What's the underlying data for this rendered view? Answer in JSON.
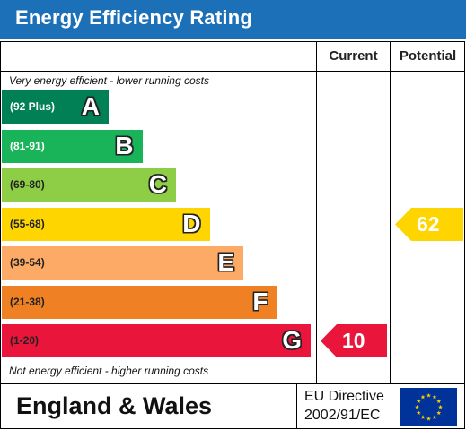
{
  "header": {
    "title": "Energy Efficiency Rating"
  },
  "columns": {
    "current": "Current",
    "potential": "Potential"
  },
  "notes": {
    "top": "Very energy efficient - lower running costs",
    "bottom": "Not energy efficient - higher running costs"
  },
  "colors": {
    "header": "#1c70b8",
    "A": "#008054",
    "B": "#19b459",
    "C": "#8dce46",
    "D": "#ffd500",
    "E": "#fcaa65",
    "F": "#ef8023",
    "G": "#e9153b",
    "flag": "#003399",
    "stars": "#ffcc00"
  },
  "chart_data": {
    "type": "bar",
    "title": "Energy Efficiency Rating",
    "bands": [
      {
        "letter": "A",
        "range": "(92 Plus)",
        "min": 92,
        "max": null
      },
      {
        "letter": "B",
        "range": "(81-91)",
        "min": 81,
        "max": 91
      },
      {
        "letter": "C",
        "range": "(69-80)",
        "min": 69,
        "max": 80
      },
      {
        "letter": "D",
        "range": "(55-68)",
        "min": 55,
        "max": 68
      },
      {
        "letter": "E",
        "range": "(39-54)",
        "min": 39,
        "max": 54
      },
      {
        "letter": "F",
        "range": "(21-38)",
        "min": 21,
        "max": 38
      },
      {
        "letter": "G",
        "range": "(1-20)",
        "min": 1,
        "max": 20
      }
    ],
    "current": {
      "value": 10,
      "label": "10",
      "band": "G"
    },
    "potential": {
      "value": 62,
      "label": "62",
      "band": "D"
    }
  },
  "footer": {
    "region": "England & Wales",
    "directive_line1": "EU Directive",
    "directive_line2": "2002/91/EC",
    "flag_icon": "eu-flag-icon"
  }
}
